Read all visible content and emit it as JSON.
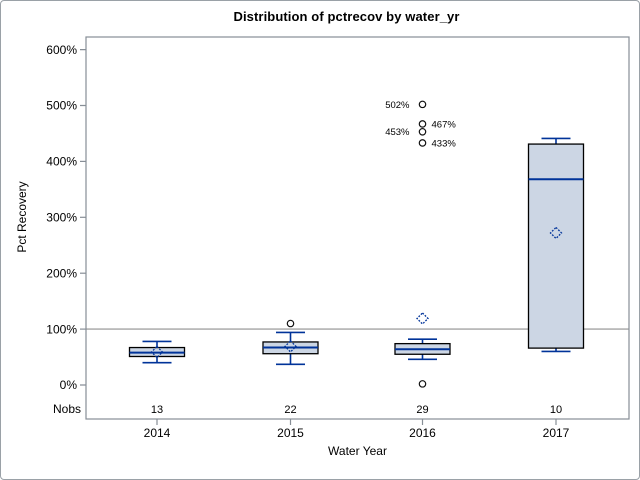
{
  "chart_data": {
    "type": "boxplot",
    "title": "Distribution of pctrecov by water_yr",
    "xlabel": "Water Year",
    "ylabel": "Pct Recovery",
    "nobs_label": "Nobs",
    "categories": [
      "2014",
      "2015",
      "2016",
      "2017"
    ],
    "nobs": [
      "13",
      "22",
      "29",
      "10"
    ],
    "yticks": [
      {
        "value": 0,
        "label": "0%"
      },
      {
        "value": 100,
        "label": "100%"
      },
      {
        "value": 200,
        "label": "200%"
      },
      {
        "value": 300,
        "label": "300%"
      },
      {
        "value": 400,
        "label": "400%"
      },
      {
        "value": 500,
        "label": "500%"
      },
      {
        "value": 600,
        "label": "600%"
      }
    ],
    "ylim": [
      0,
      600
    ],
    "reference_line": 100,
    "legend": "none",
    "grid": "off",
    "series": [
      {
        "category": "2014",
        "n": 13,
        "whisker_low": 40,
        "q1": 51,
        "median": 58,
        "q3": 67,
        "whisker_high": 78,
        "mean": 59,
        "outliers": []
      },
      {
        "category": "2015",
        "n": 22,
        "whisker_low": 37,
        "q1": 56,
        "median": 67,
        "q3": 77,
        "whisker_high": 94,
        "mean": 69,
        "outliers": [
          {
            "value": 110
          }
        ]
      },
      {
        "category": "2016",
        "n": 29,
        "whisker_low": 46,
        "q1": 55,
        "median": 64,
        "q3": 74,
        "whisker_high": 82,
        "mean": 119,
        "outliers": [
          {
            "value": 2
          },
          {
            "value": 433,
            "label": "433%",
            "label_side": "right"
          },
          {
            "value": 453,
            "label": "453%",
            "label_side": "left"
          },
          {
            "value": 467,
            "label": "467%",
            "label_side": "right"
          },
          {
            "value": 502,
            "label": "502%",
            "label_side": "left"
          }
        ]
      },
      {
        "category": "2017",
        "n": 10,
        "whisker_low": 60,
        "q1": 66,
        "median": 368,
        "q3": 431,
        "whisker_high": 441,
        "mean": 272,
        "outliers": []
      }
    ]
  },
  "colors": {
    "box_fill": "#ccd6e4",
    "box_border": "#000000",
    "median": "#003399",
    "whisker": "#003399",
    "mean_marker": "#003399",
    "outlier_stroke": "#111111",
    "frame": "#878e96",
    "reference_line": "#a3a3a3",
    "figure_border": "#9aa1a7",
    "text": "#000000"
  }
}
